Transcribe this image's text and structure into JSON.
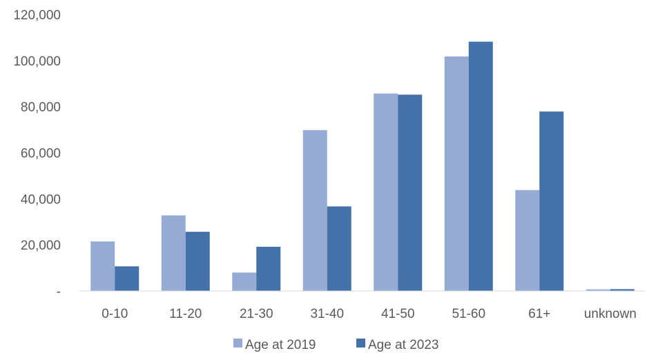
{
  "chart_data": {
    "type": "bar",
    "title": "",
    "xlabel": "",
    "ylabel": "",
    "categories": [
      "0-10",
      "11-20",
      "21-30",
      "31-40",
      "41-50",
      "51-60",
      "61+",
      "unknown"
    ],
    "series": [
      {
        "name": "Age at 2019",
        "color": "#95ABD3",
        "values": [
          21500,
          32800,
          8000,
          69800,
          85700,
          101800,
          43800,
          700
        ]
      },
      {
        "name": "Age at 2023",
        "color": "#4472A8",
        "values": [
          10700,
          25700,
          19200,
          36700,
          85200,
          108200,
          77900,
          800
        ]
      }
    ],
    "ylim": [
      0,
      120000
    ],
    "yticks": [
      0,
      20000,
      40000,
      60000,
      80000,
      100000,
      120000
    ],
    "ytick_labels": [
      "-",
      "20,000",
      "40,000",
      "60,000",
      "80,000",
      "100,000",
      "120,000"
    ],
    "grid": false,
    "legend_position": "bottom"
  }
}
